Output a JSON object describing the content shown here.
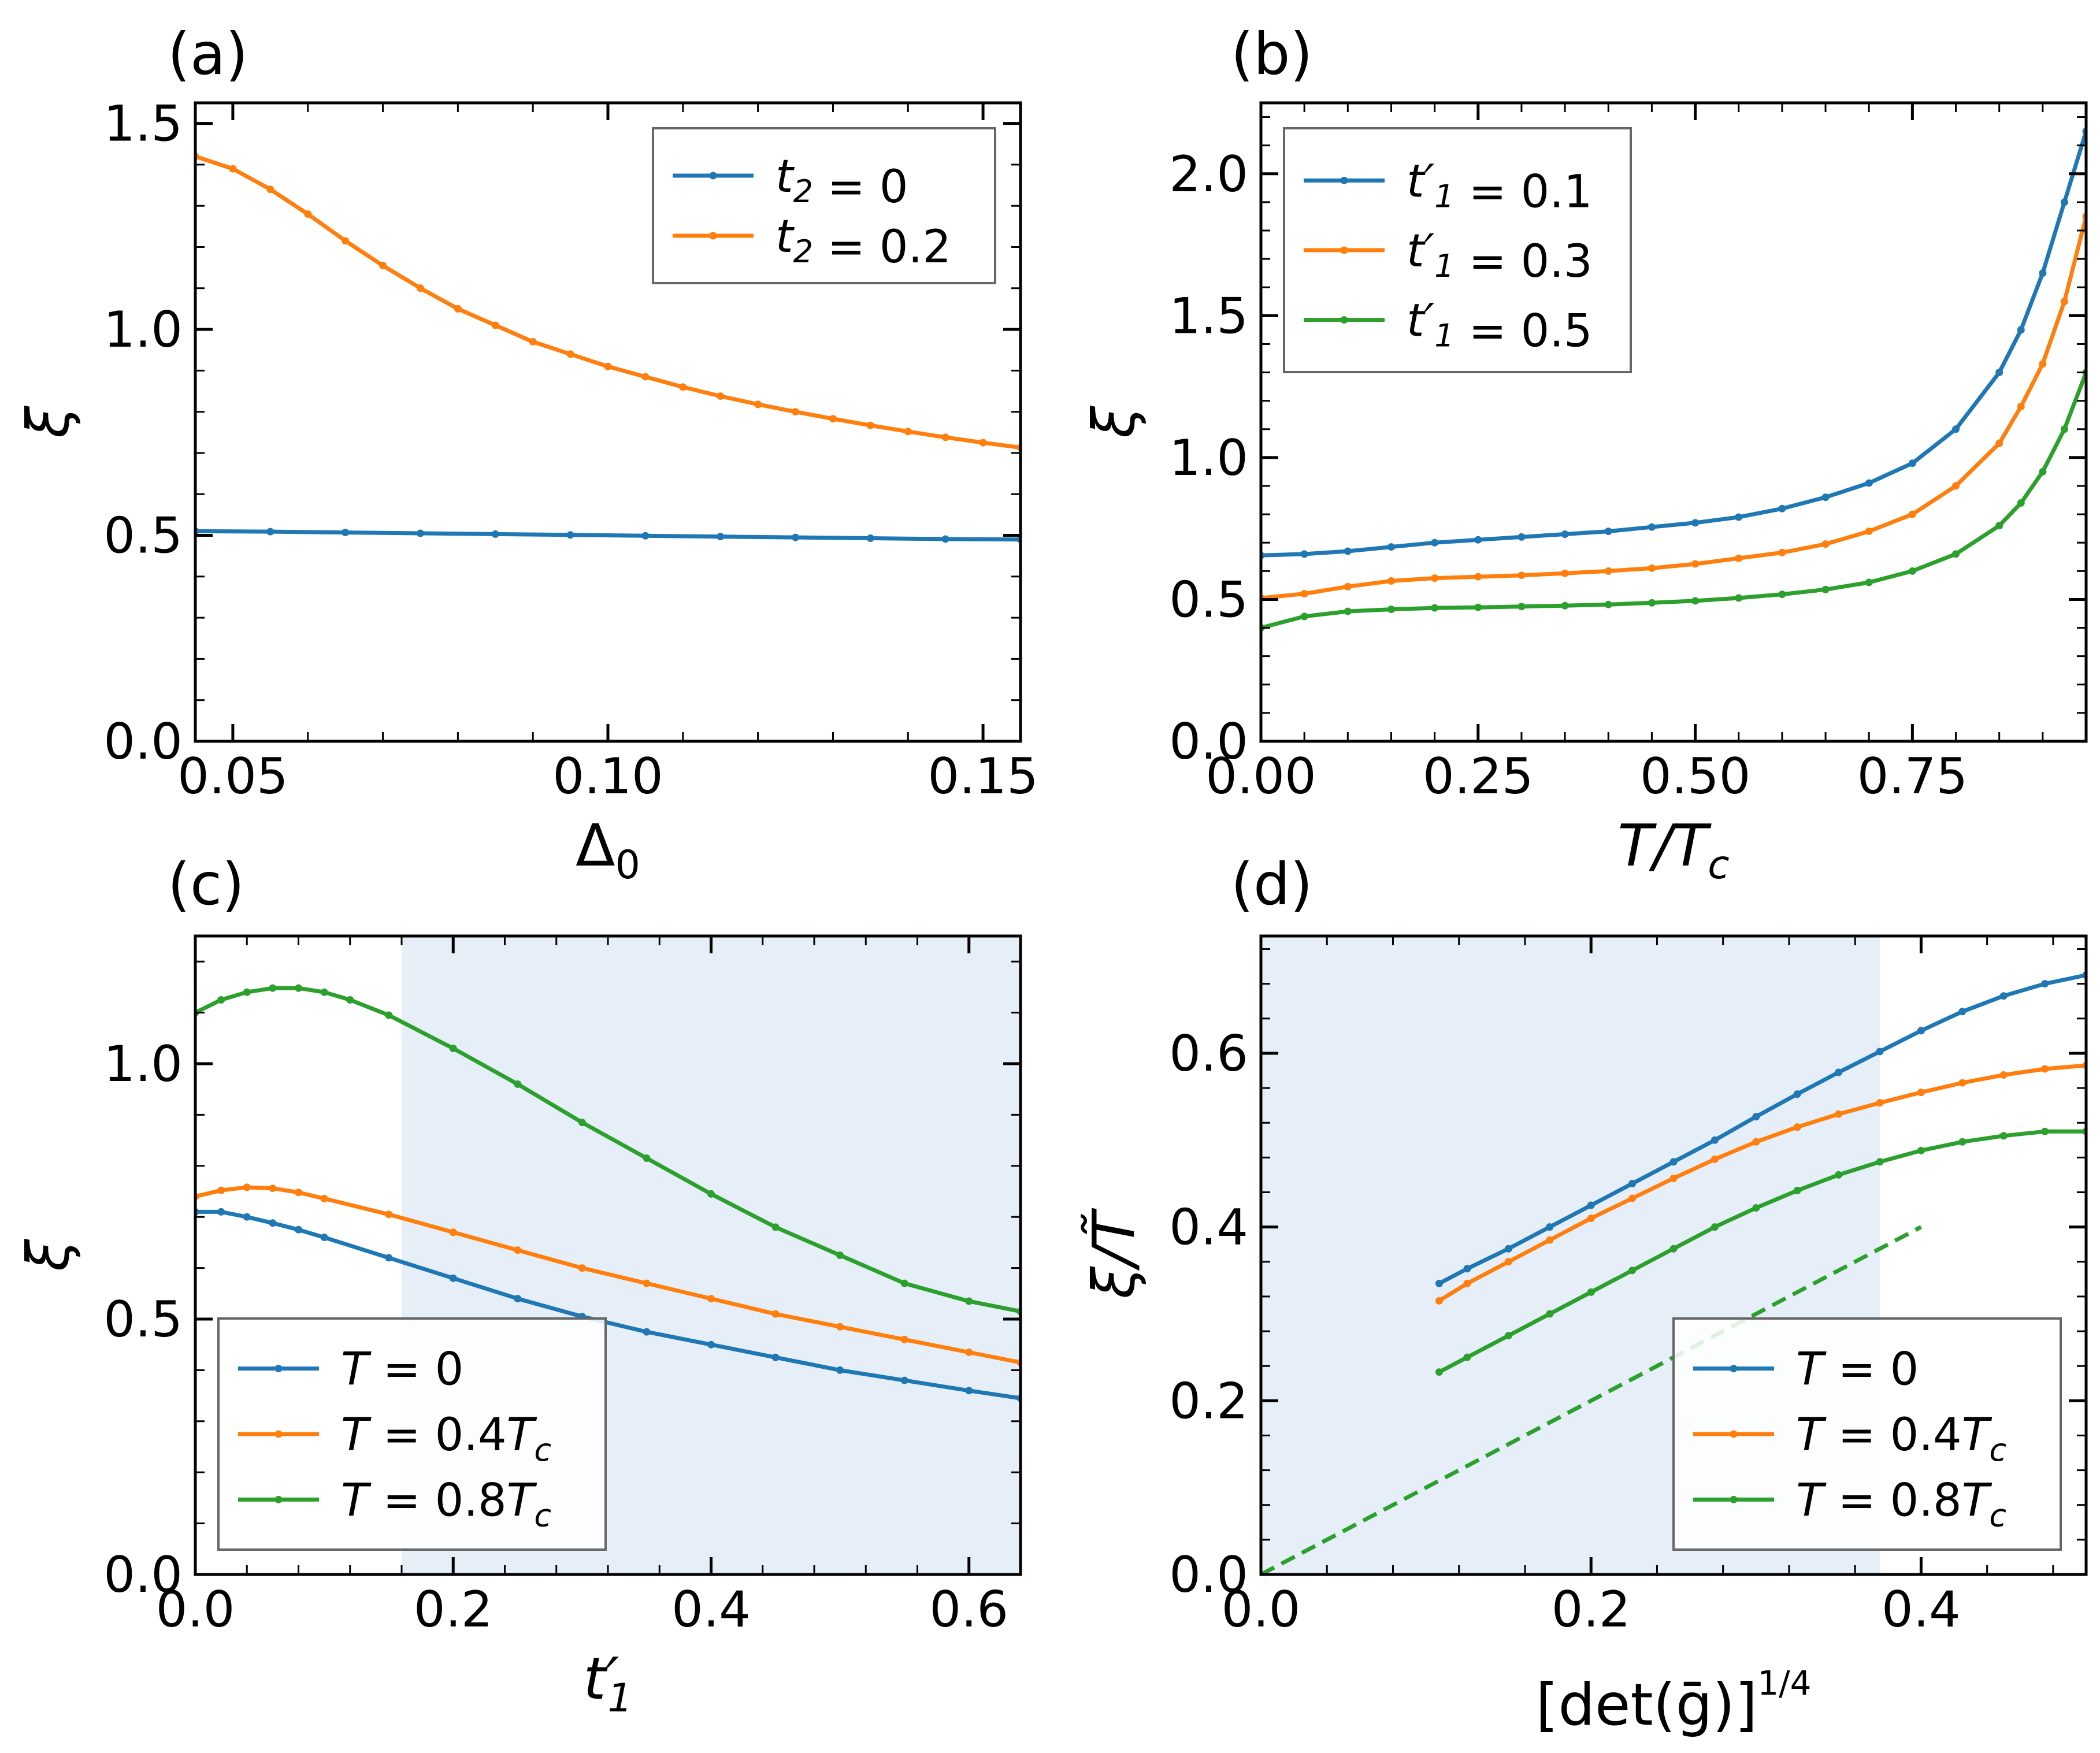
{
  "colors": {
    "blue": "#1f77b4",
    "orange": "#ff7f0e",
    "green": "#2ca02c",
    "shade": "#dce8f3"
  },
  "chart_data": [
    {
      "id": "a",
      "panel_label": "(a)",
      "type": "line",
      "xlabel": "Δ₀",
      "ylabel": "ξ",
      "xlim": [
        0.045,
        0.155
      ],
      "ylim": [
        0.0,
        1.55
      ],
      "xticks": [
        0.05,
        0.1,
        0.15
      ],
      "xtick_labels": [
        "0.05",
        "0.10",
        "0.15"
      ],
      "yticks": [
        0.0,
        0.5,
        1.0,
        1.5
      ],
      "ytick_labels": [
        "0.0",
        "0.5",
        "1.0",
        "1.5"
      ],
      "legend_position": "top-right",
      "series": [
        {
          "name": "t₂ = 0",
          "color_key": "blue",
          "x": [
            0.045,
            0.055,
            0.065,
            0.075,
            0.085,
            0.095,
            0.105,
            0.115,
            0.125,
            0.135,
            0.145,
            0.155
          ],
          "y": [
            0.51,
            0.509,
            0.507,
            0.505,
            0.503,
            0.501,
            0.499,
            0.497,
            0.495,
            0.493,
            0.491,
            0.49
          ]
        },
        {
          "name": "t₂ = 0.2",
          "color_key": "orange",
          "x": [
            0.045,
            0.05,
            0.055,
            0.06,
            0.065,
            0.07,
            0.075,
            0.08,
            0.085,
            0.09,
            0.095,
            0.1,
            0.105,
            0.11,
            0.115,
            0.12,
            0.125,
            0.13,
            0.135,
            0.14,
            0.145,
            0.15,
            0.155
          ],
          "y": [
            1.42,
            1.39,
            1.34,
            1.28,
            1.215,
            1.155,
            1.1,
            1.05,
            1.01,
            0.97,
            0.94,
            0.91,
            0.885,
            0.86,
            0.838,
            0.818,
            0.8,
            0.783,
            0.767,
            0.752,
            0.738,
            0.725,
            0.713
          ]
        }
      ]
    },
    {
      "id": "b",
      "panel_label": "(b)",
      "type": "line",
      "xlabel": "T/T_c",
      "ylabel": "ξ",
      "xlim": [
        0.0,
        0.95
      ],
      "ylim": [
        0.0,
        2.25
      ],
      "xticks": [
        0.0,
        0.25,
        0.5,
        0.75
      ],
      "xtick_labels": [
        "0.00",
        "0.25",
        "0.50",
        "0.75"
      ],
      "yticks": [
        0.0,
        0.5,
        1.0,
        1.5,
        2.0
      ],
      "ytick_labels": [
        "0.0",
        "0.5",
        "1.0",
        "1.5",
        "2.0"
      ],
      "legend_position": "top-left",
      "series": [
        {
          "name": "t′₁ = 0.1",
          "color_key": "blue",
          "x": [
            0.0,
            0.05,
            0.1,
            0.15,
            0.2,
            0.25,
            0.3,
            0.35,
            0.4,
            0.45,
            0.5,
            0.55,
            0.6,
            0.65,
            0.7,
            0.75,
            0.8,
            0.85,
            0.875,
            0.9,
            0.925,
            0.95
          ],
          "y": [
            0.655,
            0.66,
            0.67,
            0.685,
            0.7,
            0.71,
            0.72,
            0.73,
            0.74,
            0.755,
            0.77,
            0.79,
            0.82,
            0.86,
            0.91,
            0.98,
            1.1,
            1.3,
            1.45,
            1.65,
            1.9,
            2.15
          ]
        },
        {
          "name": "t′₁ = 0.3",
          "color_key": "orange",
          "x": [
            0.0,
            0.05,
            0.1,
            0.15,
            0.2,
            0.25,
            0.3,
            0.35,
            0.4,
            0.45,
            0.5,
            0.55,
            0.6,
            0.65,
            0.7,
            0.75,
            0.8,
            0.85,
            0.875,
            0.9,
            0.925,
            0.95
          ],
          "y": [
            0.505,
            0.52,
            0.545,
            0.565,
            0.575,
            0.58,
            0.585,
            0.592,
            0.6,
            0.61,
            0.625,
            0.645,
            0.665,
            0.695,
            0.74,
            0.8,
            0.9,
            1.05,
            1.18,
            1.33,
            1.55,
            1.85
          ]
        },
        {
          "name": "t′₁ = 0.5",
          "color_key": "green",
          "x": [
            0.0,
            0.05,
            0.1,
            0.15,
            0.2,
            0.25,
            0.3,
            0.35,
            0.4,
            0.45,
            0.5,
            0.55,
            0.6,
            0.65,
            0.7,
            0.75,
            0.8,
            0.85,
            0.875,
            0.9,
            0.925,
            0.95
          ],
          "y": [
            0.4,
            0.44,
            0.458,
            0.465,
            0.47,
            0.472,
            0.475,
            0.478,
            0.482,
            0.488,
            0.495,
            0.505,
            0.518,
            0.535,
            0.56,
            0.6,
            0.66,
            0.76,
            0.84,
            0.95,
            1.1,
            1.3
          ]
        }
      ]
    },
    {
      "id": "c",
      "panel_label": "(c)",
      "type": "line",
      "xlabel": "t′₁",
      "ylabel": "ξ",
      "xlim": [
        0.0,
        0.64
      ],
      "ylim": [
        0.0,
        1.25
      ],
      "xticks": [
        0.0,
        0.2,
        0.4,
        0.6
      ],
      "xtick_labels": [
        "0.0",
        "0.2",
        "0.4",
        "0.6"
      ],
      "yticks": [
        0.0,
        0.5,
        1.0
      ],
      "ytick_labels": [
        "0.0",
        "0.5",
        "1.0"
      ],
      "shaded_region": {
        "x": [
          0.16,
          0.64
        ]
      },
      "legend_position": "bottom-left",
      "series": [
        {
          "name": "T = 0",
          "color_key": "blue",
          "x": [
            0.0,
            0.02,
            0.04,
            0.06,
            0.08,
            0.1,
            0.15,
            0.2,
            0.25,
            0.3,
            0.35,
            0.4,
            0.45,
            0.5,
            0.55,
            0.6,
            0.64
          ],
          "y": [
            0.71,
            0.71,
            0.7,
            0.688,
            0.675,
            0.66,
            0.62,
            0.58,
            0.54,
            0.505,
            0.475,
            0.45,
            0.425,
            0.4,
            0.38,
            0.36,
            0.345
          ]
        },
        {
          "name": "T = 0.4T_c",
          "color_key": "orange",
          "x": [
            0.0,
            0.02,
            0.04,
            0.06,
            0.08,
            0.1,
            0.15,
            0.2,
            0.25,
            0.3,
            0.35,
            0.4,
            0.45,
            0.5,
            0.55,
            0.6,
            0.64
          ],
          "y": [
            0.74,
            0.752,
            0.758,
            0.756,
            0.748,
            0.736,
            0.705,
            0.67,
            0.635,
            0.6,
            0.57,
            0.54,
            0.51,
            0.485,
            0.46,
            0.435,
            0.415
          ]
        },
        {
          "name": "T = 0.8T_c",
          "color_key": "green",
          "x": [
            0.0,
            0.02,
            0.04,
            0.06,
            0.08,
            0.1,
            0.12,
            0.15,
            0.2,
            0.25,
            0.3,
            0.35,
            0.4,
            0.45,
            0.5,
            0.55,
            0.6,
            0.64
          ],
          "y": [
            1.1,
            1.125,
            1.14,
            1.148,
            1.148,
            1.14,
            1.125,
            1.095,
            1.03,
            0.96,
            0.885,
            0.815,
            0.745,
            0.68,
            0.625,
            0.57,
            0.535,
            0.515
          ]
        }
      ]
    },
    {
      "id": "d",
      "panel_label": "(d)",
      "type": "line",
      "xlabel": "[det(ḡ)]^(1/4)",
      "ylabel": "ξ/T̃",
      "xlim": [
        0.0,
        0.5
      ],
      "ylim": [
        0.0,
        0.735
      ],
      "xticks": [
        0.0,
        0.2,
        0.4
      ],
      "xtick_labels": [
        "0.0",
        "0.2",
        "0.4"
      ],
      "yticks": [
        0.0,
        0.2,
        0.4,
        0.6
      ],
      "ytick_labels": [
        "0.0",
        "0.2",
        "0.4",
        "0.6"
      ],
      "shaded_region": {
        "x": [
          0.0,
          0.375
        ]
      },
      "reference_line": {
        "x": [
          0.0,
          0.4
        ],
        "y": [
          0.0,
          0.4
        ],
        "color_key": "green",
        "style": "dashed"
      },
      "legend_position": "bottom-right",
      "series": [
        {
          "name": "T = 0",
          "color_key": "blue",
          "x": [
            0.108,
            0.125,
            0.15,
            0.175,
            0.2,
            0.225,
            0.25,
            0.275,
            0.3,
            0.325,
            0.35,
            0.375,
            0.4,
            0.425,
            0.45,
            0.475,
            0.5
          ],
          "y": [
            0.335,
            0.352,
            0.375,
            0.4,
            0.425,
            0.45,
            0.475,
            0.5,
            0.527,
            0.553,
            0.578,
            0.602,
            0.626,
            0.648,
            0.666,
            0.68,
            0.69
          ]
        },
        {
          "name": "T = 0.4T_c",
          "color_key": "orange",
          "x": [
            0.108,
            0.125,
            0.15,
            0.175,
            0.2,
            0.225,
            0.25,
            0.275,
            0.3,
            0.325,
            0.35,
            0.375,
            0.4,
            0.425,
            0.45,
            0.475,
            0.5
          ],
          "y": [
            0.315,
            0.335,
            0.36,
            0.385,
            0.41,
            0.433,
            0.456,
            0.478,
            0.498,
            0.515,
            0.53,
            0.543,
            0.555,
            0.566,
            0.575,
            0.582,
            0.586
          ]
        },
        {
          "name": "T = 0.8T_c",
          "color_key": "green",
          "x": [
            0.108,
            0.125,
            0.15,
            0.175,
            0.2,
            0.225,
            0.25,
            0.275,
            0.3,
            0.325,
            0.35,
            0.375,
            0.4,
            0.425,
            0.45,
            0.475,
            0.5
          ],
          "y": [
            0.233,
            0.25,
            0.275,
            0.3,
            0.325,
            0.35,
            0.375,
            0.4,
            0.422,
            0.442,
            0.46,
            0.475,
            0.488,
            0.498,
            0.505,
            0.51,
            0.51
          ]
        }
      ]
    }
  ]
}
